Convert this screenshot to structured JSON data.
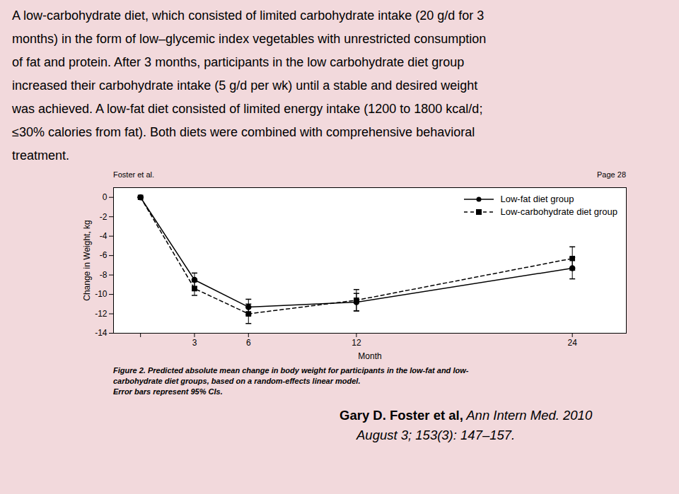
{
  "chart_data": {
    "type": "line",
    "annotations": [
      "A low-carbohydrate diet, which consisted of limited carbohydrate intake (20 g/d for 3",
      "months) in the form of low–glycemic index vegetables with unrestricted consumption",
      "of fat and protein. After 3 months, participants in the low carbohydrate diet group",
      "increased their carbohydrate intake (5 g/d per wk) until a stable and desired weight",
      "was achieved. A low-fat diet consisted of limited energy intake (1200 to 1800 kcal/d;",
      "≤30% calories from fat). Both diets were combined with comprehensive behavioral",
      "treatment.",
      "Foster et al.",
      "Page 28",
      "Figure 2. Predicted absolute mean change in body weight for participants in the low-fat and low-",
      "carbohydrate diet groups, based on a random-effects linear model.",
      "Error bars represent 95% CIs.",
      "Gary D. Foster et al,",
      " Ann Intern Med. 2010",
      "August 3; 153(3): 147–157."
    ],
    "xlabel": "Month",
    "ylabel": "Change in Weight, kg",
    "x": [
      0,
      3,
      6,
      12,
      24
    ],
    "series": [
      {
        "name": "Low-fat diet group",
        "color": "black",
        "marker": "circle",
        "line_style": "solid",
        "values": [
          0,
          -8.5,
          -11.3,
          -10.8,
          -7.3
        ],
        "errors": [
          0,
          0.7,
          0.8,
          0.9,
          1.1
        ]
      },
      {
        "name": "Low-carbohydrate diet group",
        "color": "black",
        "marker": "square",
        "line_style": "dashed",
        "values": [
          0,
          -9.4,
          -12.0,
          -10.6,
          -6.3
        ],
        "errors": [
          0,
          0.7,
          1.0,
          1.1,
          1.2
        ]
      }
    ],
    "xlim": [
      -1.5,
      27
    ],
    "xticks": [
      {
        "value": 0,
        "label": ""
      },
      3,
      6,
      12,
      24
    ],
    "ylim": [
      -14,
      1
    ],
    "yticks": [
      0,
      -2,
      -4,
      -6,
      -8,
      -10,
      -12,
      -14
    ],
    "grid": false,
    "legend": "upper right"
  }
}
